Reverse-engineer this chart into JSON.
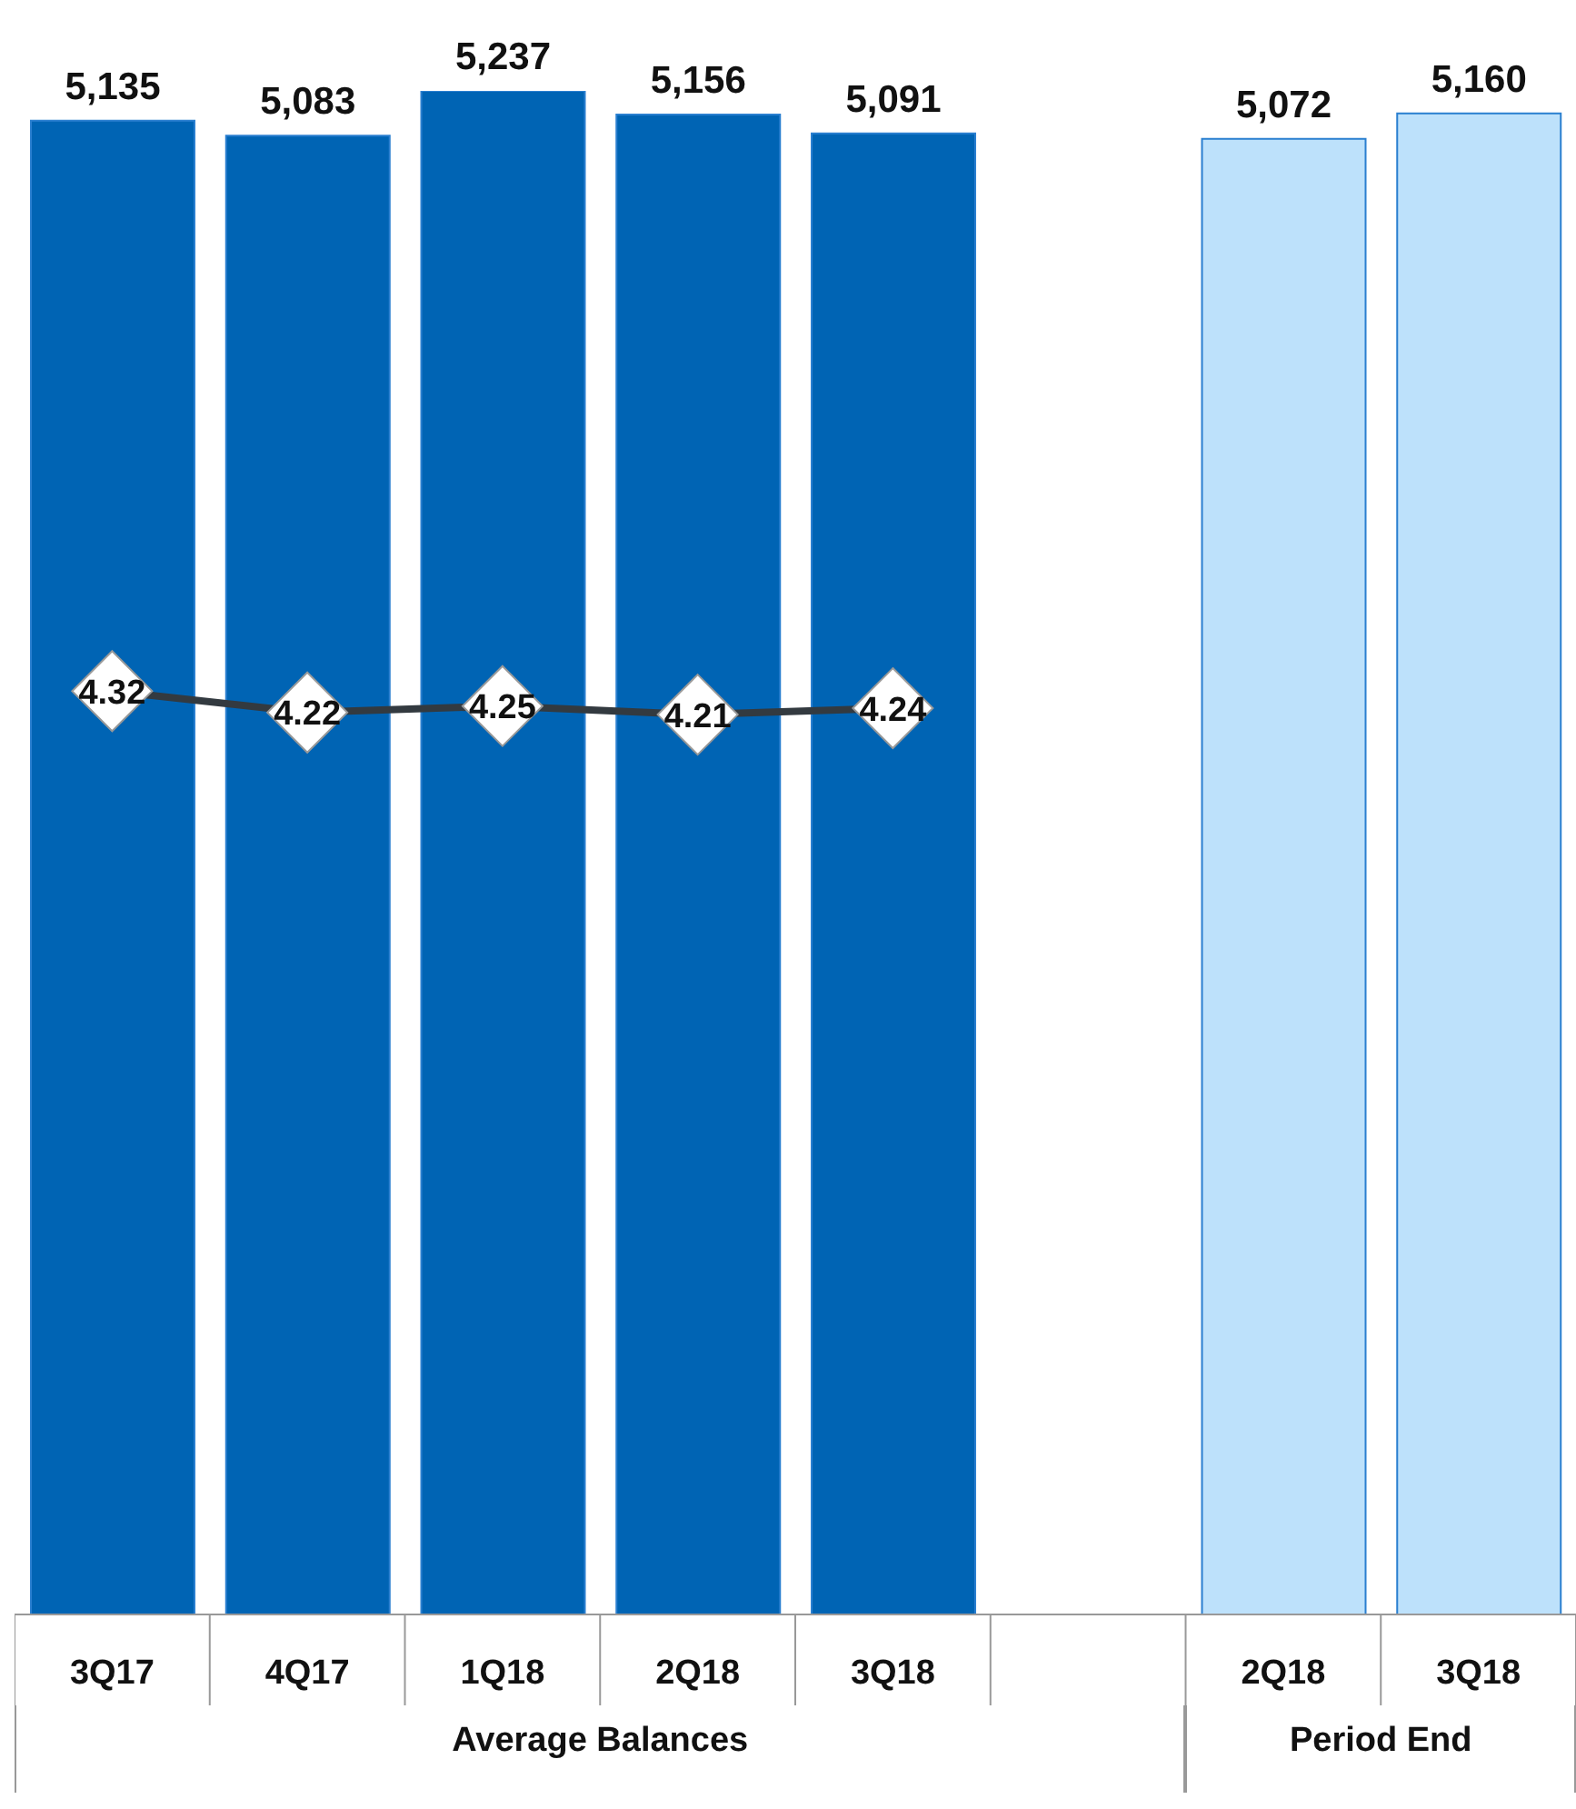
{
  "chart_data": {
    "type": "bar",
    "categories": [
      "3Q17",
      "4Q17",
      "1Q18",
      "2Q18",
      "3Q18",
      null,
      "2Q18",
      "3Q18"
    ],
    "series": [
      {
        "colors": [
          "#0064b4",
          "#0064b4",
          "#0064b4",
          "#0064b4",
          "#0064b4",
          null,
          "#bde1fb",
          "#bde1fb"
        ],
        "values": [
          5135,
          5083,
          5237,
          5156,
          5091,
          null,
          5072,
          5160
        ],
        "value_labels": [
          "5,135",
          "5,083",
          "5,237",
          "5,156",
          "5,091",
          null,
          "5,072",
          "5,160"
        ]
      },
      {
        "type": "line",
        "axis": "y2",
        "color": "#333a40",
        "values": [
          4.32,
          4.22,
          4.25,
          4.21,
          4.24,
          null,
          null,
          null
        ]
      }
    ],
    "tick_labels": "x",
    "data_labels": true,
    "grid": false,
    "legend": false,
    "marker": "diamond",
    "annotations": [
      "Average Balances",
      "Period End"
    ]
  }
}
